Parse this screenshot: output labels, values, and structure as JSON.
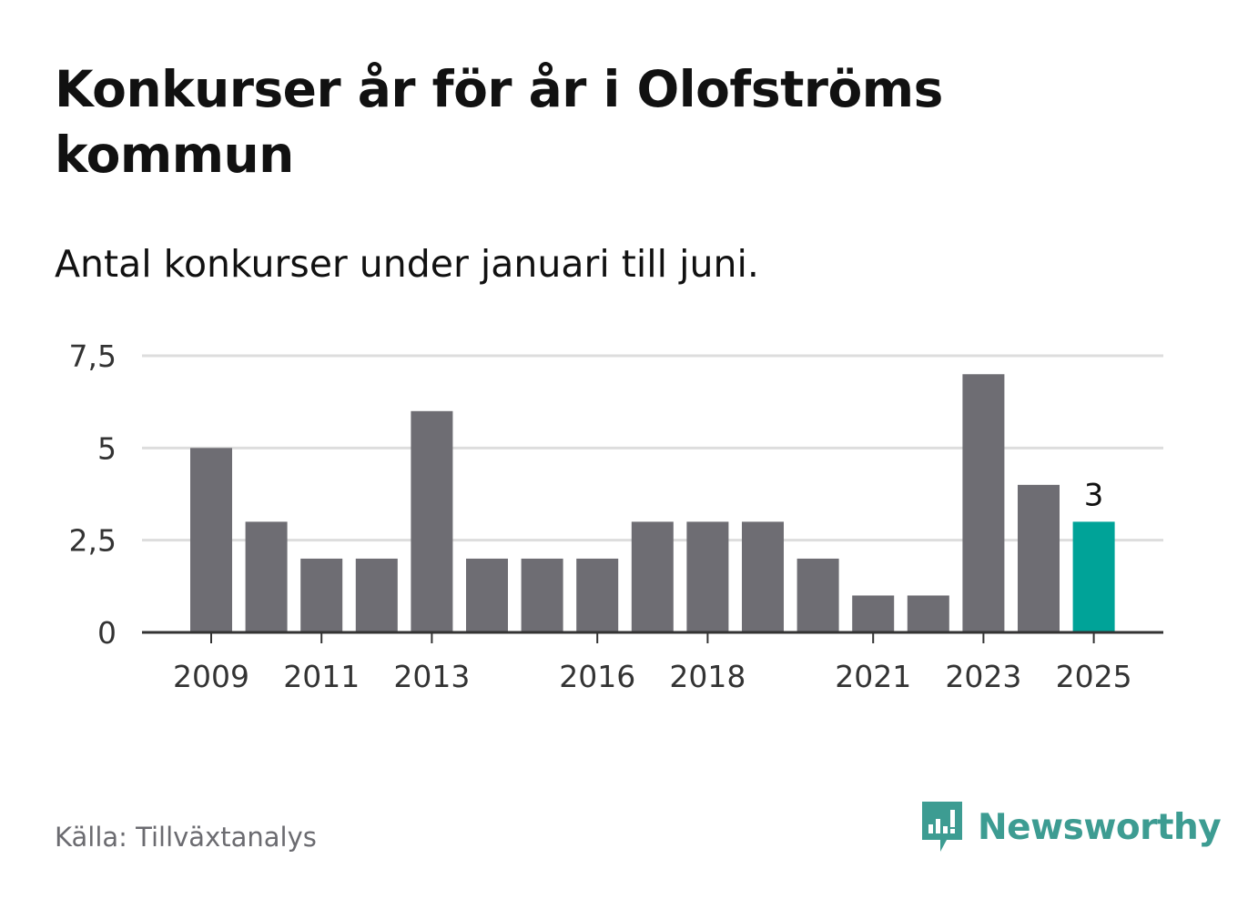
{
  "header": {
    "title": "Konkurser år för år i Olofströms kommun",
    "subtitle": "Antal konkurser under januari till juni."
  },
  "footer": {
    "source": "Källa: Tillväxtanalys",
    "brand": "Newsworthy"
  },
  "colors": {
    "bar": "#6e6d73",
    "highlight": "#00a398",
    "grid": "#dddddd",
    "axis": "#333333",
    "brand": "#3d9c92"
  },
  "chart_data": {
    "type": "bar",
    "categories": [
      "2009",
      "2010",
      "2011",
      "2012",
      "2013",
      "2014",
      "2015",
      "2016",
      "2017",
      "2018",
      "2019",
      "2020",
      "2021",
      "2022",
      "2023",
      "2024",
      "2025"
    ],
    "values": [
      5,
      3,
      2,
      2,
      6,
      2,
      2,
      2,
      3,
      3,
      3,
      2,
      1,
      1,
      7,
      4,
      3
    ],
    "x_tick_labels": [
      "2009",
      "2011",
      "2013",
      "2016",
      "2018",
      "2021",
      "2023",
      "2025"
    ],
    "y_ticks": [
      0,
      2.5,
      5,
      7.5
    ],
    "y_tick_labels": [
      "0",
      "2,5",
      "5",
      "7,5"
    ],
    "ylim": [
      0,
      7.5
    ],
    "highlight_category": "2025",
    "data_labels": [
      {
        "category": "2025",
        "text": "3"
      }
    ],
    "grid": true,
    "legend": "none"
  }
}
